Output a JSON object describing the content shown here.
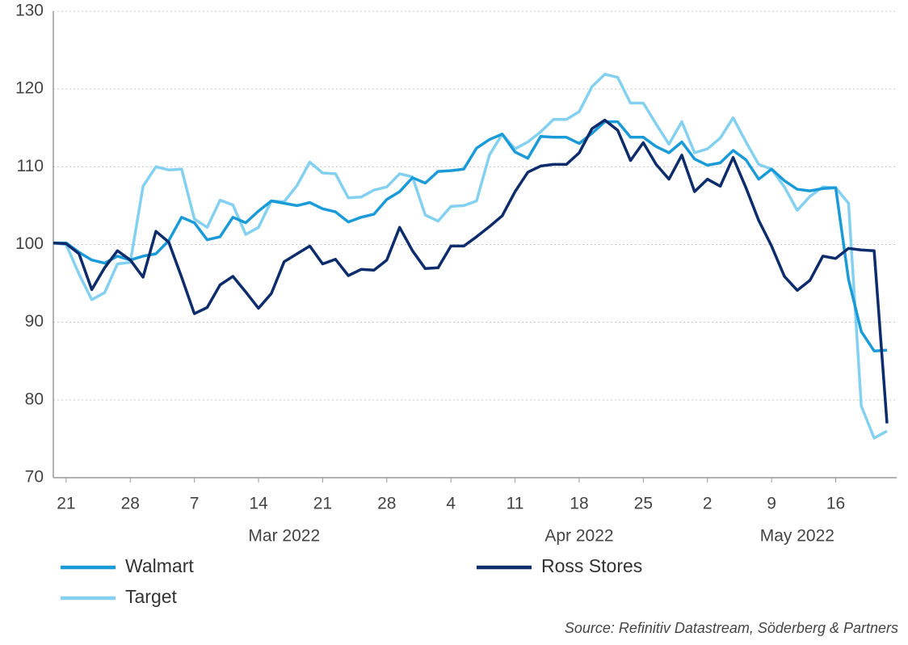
{
  "chart_data": {
    "type": "line",
    "x": [
      "2022-02-18",
      "2022-02-21",
      "2022-02-22",
      "2022-02-23",
      "2022-02-24",
      "2022-02-25",
      "2022-02-28",
      "2022-03-01",
      "2022-03-02",
      "2022-03-03",
      "2022-03-04",
      "2022-03-07",
      "2022-03-08",
      "2022-03-09",
      "2022-03-10",
      "2022-03-11",
      "2022-03-14",
      "2022-03-15",
      "2022-03-16",
      "2022-03-17",
      "2022-03-18",
      "2022-03-21",
      "2022-03-22",
      "2022-03-23",
      "2022-03-24",
      "2022-03-25",
      "2022-03-28",
      "2022-03-29",
      "2022-03-30",
      "2022-03-31",
      "2022-04-01",
      "2022-04-04",
      "2022-04-05",
      "2022-04-06",
      "2022-04-07",
      "2022-04-08",
      "2022-04-11",
      "2022-04-12",
      "2022-04-13",
      "2022-04-14",
      "2022-04-15",
      "2022-04-18",
      "2022-04-19",
      "2022-04-20",
      "2022-04-21",
      "2022-04-22",
      "2022-04-25",
      "2022-04-26",
      "2022-04-27",
      "2022-04-28",
      "2022-04-29",
      "2022-05-02",
      "2022-05-03",
      "2022-05-04",
      "2022-05-05",
      "2022-05-06",
      "2022-05-09",
      "2022-05-10",
      "2022-05-11",
      "2022-05-12",
      "2022-05-13",
      "2022-05-16",
      "2022-05-17",
      "2022-05-18",
      "2022-05-19",
      "2022-05-20"
    ],
    "series": [
      {
        "name": "Walmart",
        "color": "#1a9bd7",
        "values": [
          100.2,
          100.2,
          99,
          98,
          97.6,
          98.5,
          98,
          98.5,
          98.8,
          100.5,
          103.5,
          102.8,
          100.6,
          101,
          103.5,
          102.8,
          104.3,
          105.6,
          105.3,
          105,
          105.4,
          104.6,
          104.2,
          102.9,
          103.5,
          103.9,
          105.8,
          106.8,
          108.6,
          107.9,
          109.4,
          109.5,
          109.7,
          112.4,
          113.5,
          114.2,
          111.9,
          111.1,
          113.9,
          113.8,
          113.8,
          113,
          114.3,
          115.8,
          115.8,
          113.8,
          113.8,
          112.6,
          111.8,
          113.2,
          111,
          110.2,
          110.5,
          112.1,
          110.9,
          108.4,
          109.7,
          108.2,
          107.1,
          106.9,
          107.2,
          107.3,
          95.5,
          88.8,
          86.3,
          86.4
        ]
      },
      {
        "name": "Ross Stores",
        "color": "#0c2c6c",
        "values": [
          100.2,
          100.1,
          98.8,
          94.2,
          97,
          99.2,
          98,
          95.8,
          101.7,
          100.3,
          95.8,
          91.1,
          91.9,
          94.8,
          95.9,
          93.9,
          91.8,
          93.7,
          97.8,
          98.8,
          99.8,
          97.5,
          98.1,
          96,
          96.8,
          96.7,
          98,
          102.2,
          99.2,
          96.9,
          97,
          99.8,
          99.8,
          101,
          102.3,
          103.7,
          106.8,
          109.3,
          110.1,
          110.3,
          110.3,
          111.8,
          114.9,
          116,
          114.7,
          110.8,
          113.1,
          110.3,
          108.4,
          111.5,
          106.8,
          108.4,
          107.5,
          111.2,
          107.3,
          103.1,
          99.8,
          95.9,
          94.1,
          95.4,
          98.5,
          98.2,
          99.5,
          99.3,
          99.2,
          77
        ]
      },
      {
        "name": "Target",
        "color": "#84d0f0",
        "values": [
          100.2,
          100,
          96.2,
          92.9,
          93.8,
          97.5,
          97.7,
          107.5,
          110,
          109.6,
          109.7,
          103.3,
          102.2,
          105.7,
          105.1,
          101.3,
          102.2,
          105.6,
          105.5,
          107.6,
          110.6,
          109.2,
          109.1,
          106,
          106.1,
          107,
          107.4,
          109.1,
          108.7,
          103.8,
          103,
          104.9,
          105,
          105.6,
          111.5,
          114.2,
          112.3,
          113.2,
          114.5,
          116.1,
          116.1,
          117.1,
          120.3,
          121.9,
          121.5,
          118.2,
          118.2,
          115.5,
          112.9,
          115.8,
          111.8,
          112.3,
          113.7,
          116.3,
          113.2,
          110.3,
          109.7,
          107.4,
          104.4,
          106.2,
          107.4,
          107.3,
          105.3,
          79.2,
          75.1,
          76
        ]
      }
    ],
    "ylim": [
      70,
      130
    ],
    "yticks": [
      70,
      80,
      90,
      100,
      110,
      120,
      130
    ],
    "xticks": [
      {
        "value": "2022-02-21",
        "label": "21"
      },
      {
        "value": "2022-02-28",
        "label": "28"
      },
      {
        "value": "2022-03-07",
        "label": "7"
      },
      {
        "value": "2022-03-14",
        "label": "14"
      },
      {
        "value": "2022-03-21",
        "label": "21"
      },
      {
        "value": "2022-03-28",
        "label": "28"
      },
      {
        "value": "2022-04-04",
        "label": "4"
      },
      {
        "value": "2022-04-11",
        "label": "11"
      },
      {
        "value": "2022-04-18",
        "label": "18"
      },
      {
        "value": "2022-04-25",
        "label": "25"
      },
      {
        "value": "2022-05-02",
        "label": "2"
      },
      {
        "value": "2022-05-09",
        "label": "9"
      },
      {
        "value": "2022-05-16",
        "label": "16"
      }
    ],
    "month_labels": [
      {
        "value": "2022-03-16",
        "label": "Mar 2022"
      },
      {
        "value": "2022-04-18",
        "label": "Apr 2022"
      },
      {
        "value": "2022-05-11",
        "label": "May 2022"
      }
    ],
    "grid": true,
    "legend": "bottom",
    "source": "Source: Refinitiv Datastream, Söderberg & Partners"
  }
}
